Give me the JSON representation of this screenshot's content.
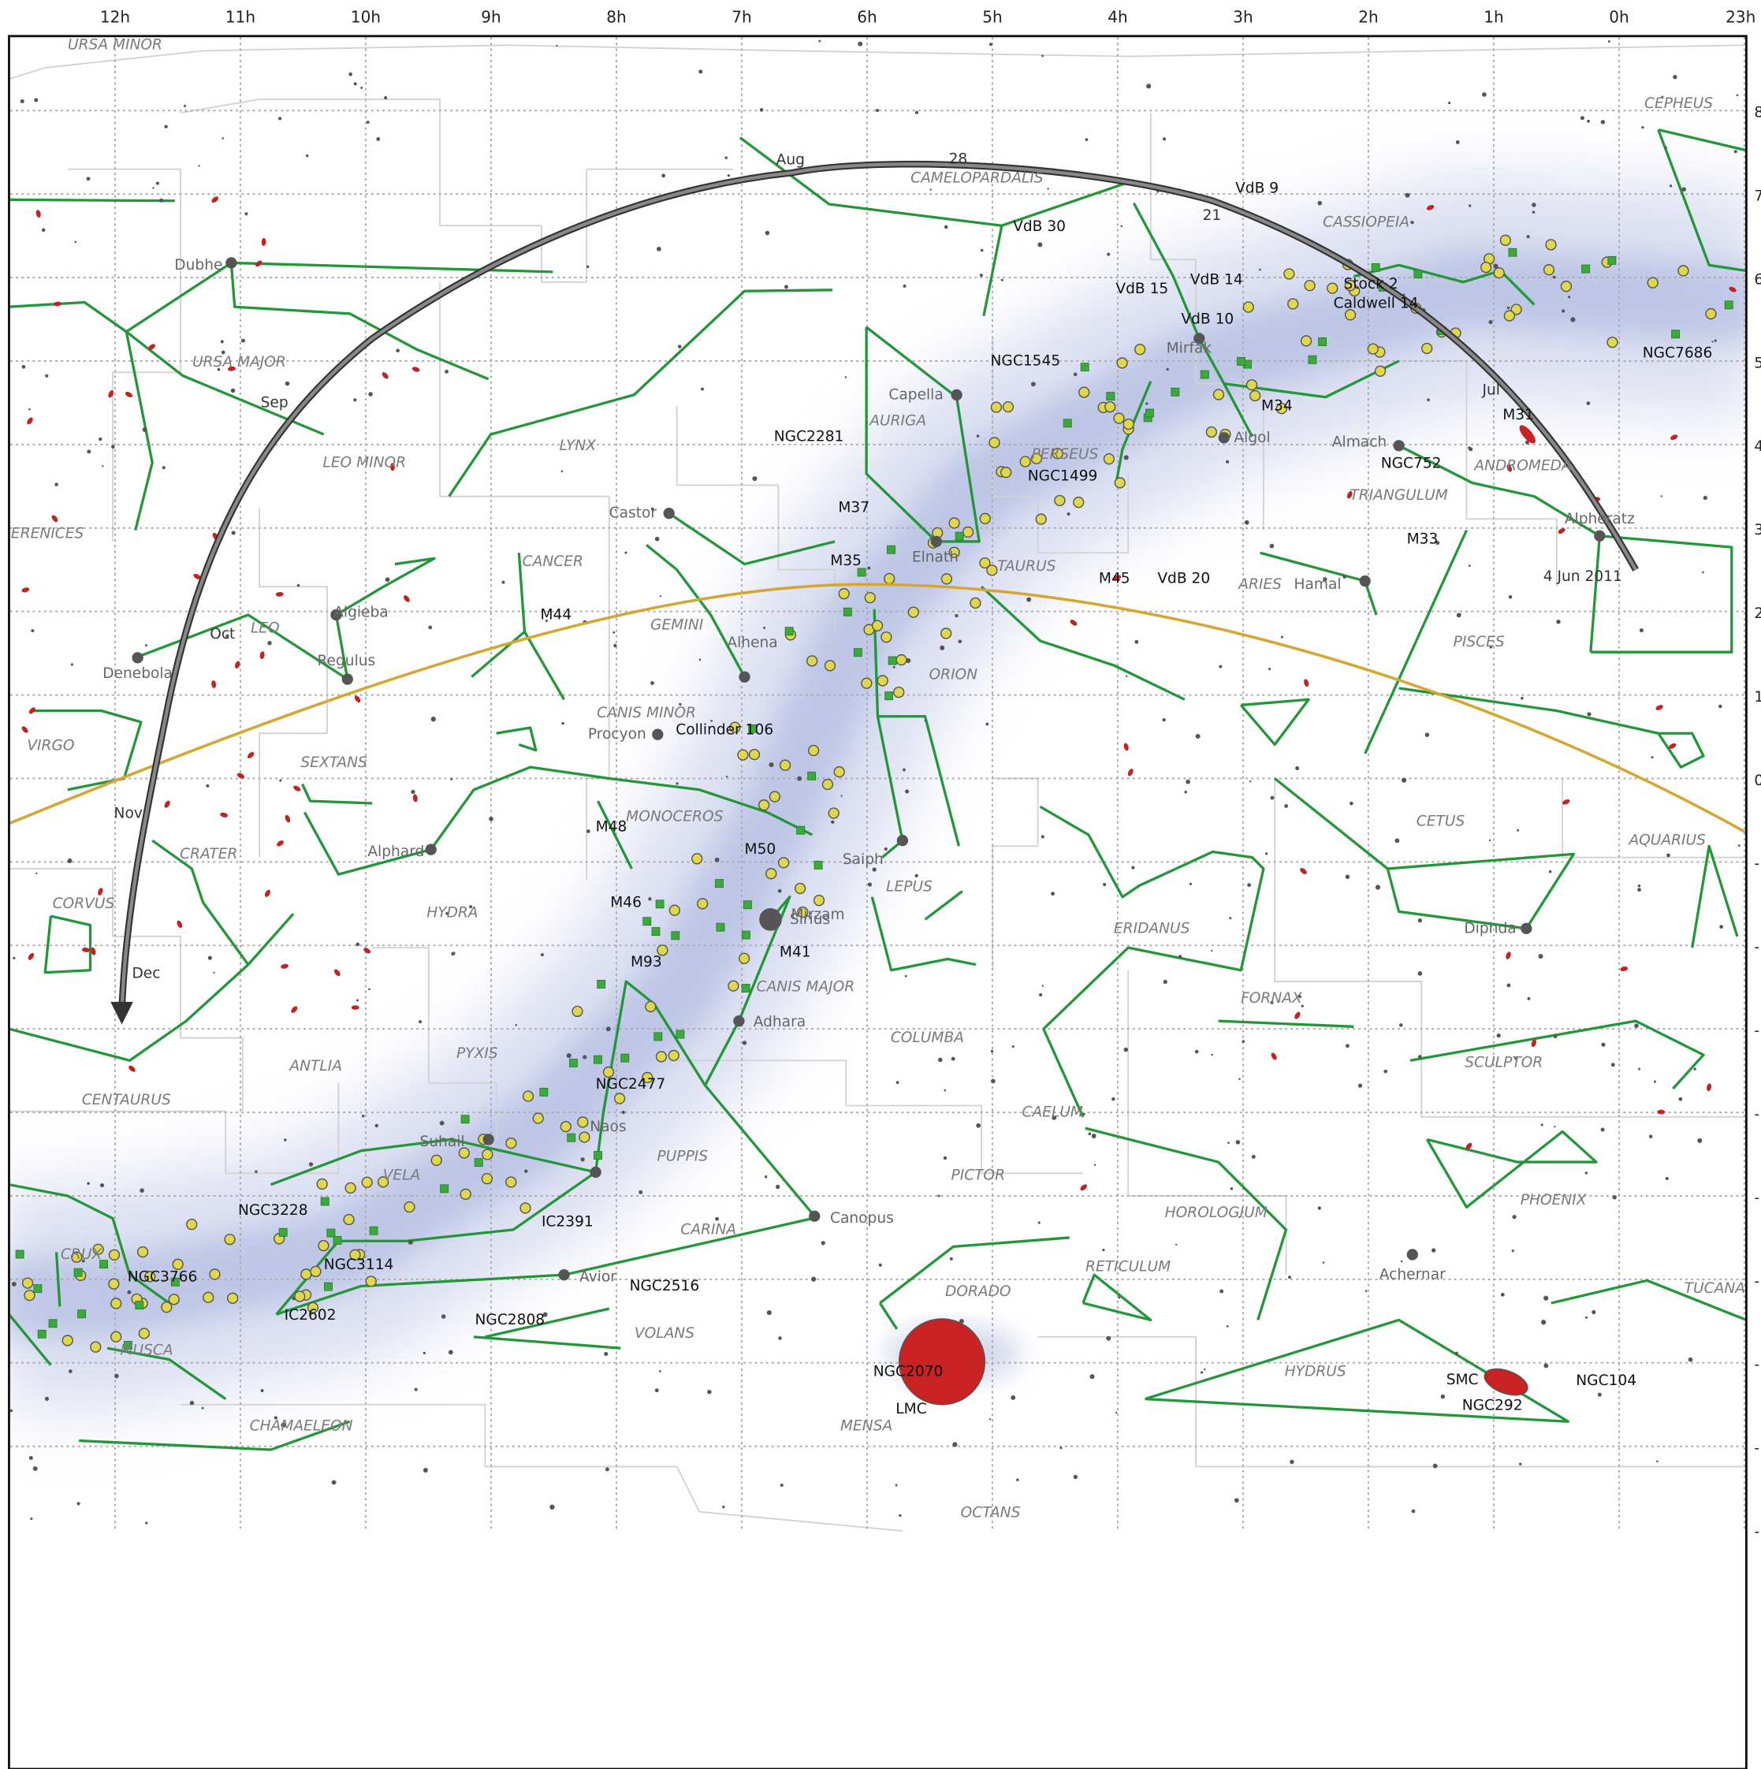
{
  "ra_labels": [
    "12h",
    "11h",
    "10h",
    "9h",
    "8h",
    "7h",
    "6h",
    "5h",
    "4h",
    "3h",
    "2h",
    "1h",
    "0h",
    "23h"
  ],
  "dec_labels": [
    "8",
    "7",
    "6",
    "5",
    "4",
    "3",
    "2",
    "1",
    "0",
    "-",
    "-",
    "-",
    "-",
    "-",
    "-",
    "-",
    "-",
    "-"
  ],
  "constellations": [
    "URSA MINOR",
    "CEPHEUS",
    "CAMELOPARDALIS",
    "CASSIOPEIA",
    "URSA MAJOR",
    "LYNX",
    "AURIGA",
    "PERSEUS",
    "LEO MINOR",
    "ANDROMEDA",
    "TRIANGULUM",
    "ERENICES",
    "CANCER",
    "TAURUS",
    "ARIES",
    "GEMINI",
    "LEO",
    "PISCES",
    "ORION",
    "CANIS MINOR",
    "SEXTANS",
    "VIRGO",
    "MONOCEROS",
    "CETUS",
    "AQUARIUS",
    "CRATER",
    "LEPUS",
    "CORVUS",
    "HYDRA",
    "ERIDANUS",
    "CANIS MAJOR",
    "FORNAX",
    "COLUMBA",
    "PYXIS",
    "SCULPTOR",
    "ANTLIA",
    "CENTAURUS",
    "CAELUM",
    "PUPPIS",
    "VELA",
    "PICTOR",
    "PHOENIX",
    "HOROLOGIUM",
    "CARINA",
    "CRUX",
    "RETICULUM",
    "TUCANA",
    "DORADO",
    "VOLANS",
    "MUSCA",
    "HYDRUS",
    "CHAMAELEON",
    "MENSA",
    "OCTANS"
  ],
  "stars": [
    "Dubhe",
    "Capella",
    "Mirfak",
    "Algol",
    "Almach",
    "Castor",
    "Elnath",
    "Alpheratz",
    "Hamal",
    "Algieba",
    "Alhena",
    "Regulus",
    "Denebola",
    "Procyon",
    "Alphard",
    "Saiph",
    "Mirzam",
    "Sirius",
    "Diphda",
    "Adhara",
    "Naos",
    "Suhail",
    "Canopus",
    "Avior",
    "Achernar"
  ],
  "objects": [
    "VdB 9",
    "VdB 30",
    "VdB 15",
    "VdB 14",
    "Stock 2",
    "Caldwell 14",
    "VdB 10",
    "NGC1545",
    "NGC7686",
    "M34",
    "M31",
    "NGC2281",
    "NGC752",
    "NGC1499",
    "M37",
    "M33",
    "M35",
    "M45",
    "VdB 20",
    "M44",
    "Collinder 106",
    "M48",
    "M50",
    "M46",
    "M41",
    "M93",
    "NGC2477",
    "NGC3228",
    "IC2391",
    "NGC3114",
    "NGC3766",
    "NGC2516",
    "IC2602",
    "NGC2808",
    "NGC2070",
    "LMC",
    "SMC",
    "NGC104",
    "NGC292"
  ],
  "path_labels": [
    "Aug",
    "28",
    "21",
    "Jul",
    "Sep",
    "Oct",
    "Nov",
    "Dec",
    "4 Jun 2011"
  ]
}
